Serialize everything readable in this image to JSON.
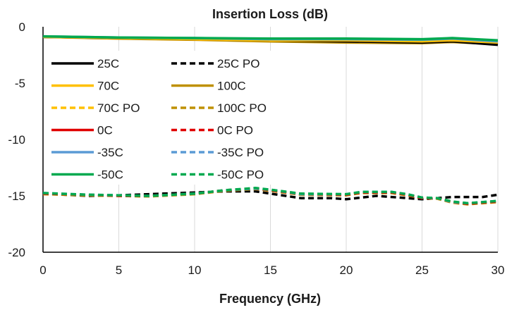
{
  "chart_data": {
    "type": "line",
    "title": "Insertion Loss (dB)",
    "xlabel": "Frequency  (GHz)",
    "ylabel": "",
    "xlim": [
      0,
      30
    ],
    "ylim": [
      -20,
      0
    ],
    "x_ticks": [
      "0",
      "5",
      "10",
      "15",
      "20",
      "25",
      "30"
    ],
    "y_ticks": [
      "0",
      "-5",
      "-10",
      "-15",
      "-20"
    ],
    "grid": "vertical",
    "legend_position": "top-left",
    "series": [
      {
        "name": "25C",
        "color": "#000000",
        "dash": "solid",
        "x": [
          0,
          5,
          10,
          15,
          20,
          25,
          27,
          30
        ],
        "y": [
          -0.9,
          -1.0,
          -1.1,
          -1.2,
          -1.3,
          -1.4,
          -1.3,
          -1.6
        ]
      },
      {
        "name": "25C PO",
        "color": "#000000",
        "dash": "dashed",
        "x": [
          0,
          3,
          5,
          8,
          10,
          12,
          14,
          15,
          17,
          19,
          20,
          22,
          24,
          25,
          27,
          29,
          30
        ],
        "y": [
          -14.8,
          -15.0,
          -14.95,
          -14.8,
          -14.7,
          -14.6,
          -14.6,
          -14.8,
          -15.2,
          -15.2,
          -15.3,
          -15.0,
          -15.2,
          -15.3,
          -15.1,
          -15.1,
          -14.9
        ]
      },
      {
        "name": "70C",
        "color": "#FFC000",
        "dash": "solid",
        "x": [
          0,
          5,
          10,
          15,
          20,
          25,
          27,
          30
        ],
        "y": [
          -0.9,
          -1.0,
          -1.1,
          -1.2,
          -1.2,
          -1.3,
          -1.2,
          -1.4
        ]
      },
      {
        "name": "100C",
        "color": "#BF9000",
        "dash": "solid",
        "x": [
          0,
          5,
          10,
          15,
          20,
          25,
          27,
          30
        ],
        "y": [
          -0.9,
          -1.05,
          -1.15,
          -1.3,
          -1.4,
          -1.45,
          -1.35,
          -1.55
        ]
      },
      {
        "name": "70C PO",
        "color": "#FFC000",
        "dash": "dashed",
        "x": [
          0,
          3,
          5,
          7,
          10,
          12,
          14,
          15,
          17,
          20,
          21,
          23,
          24,
          25,
          26,
          27,
          28,
          30
        ],
        "y": [
          -14.8,
          -14.95,
          -15.0,
          -15.05,
          -14.8,
          -14.5,
          -14.35,
          -14.5,
          -14.9,
          -14.9,
          -14.7,
          -14.7,
          -14.9,
          -15.2,
          -15.2,
          -15.6,
          -15.7,
          -15.5
        ]
      },
      {
        "name": "100C PO",
        "color": "#BF9000",
        "dash": "dashed",
        "x": [
          0,
          3,
          5,
          7,
          10,
          12,
          14,
          15,
          17,
          20,
          21,
          23,
          24,
          25,
          26,
          27,
          28,
          30
        ],
        "y": [
          -14.85,
          -14.95,
          -15.0,
          -15.05,
          -14.85,
          -14.55,
          -14.4,
          -14.55,
          -14.9,
          -14.95,
          -14.75,
          -14.75,
          -14.95,
          -15.2,
          -15.25,
          -15.6,
          -15.75,
          -15.55
        ]
      },
      {
        "name": "0C",
        "color": "#E00000",
        "dash": "solid",
        "x": [
          0,
          5,
          10,
          15,
          20,
          25,
          27,
          30
        ],
        "y": [
          -0.9,
          -1.0,
          -1.05,
          -1.15,
          -1.2,
          -1.25,
          -1.15,
          -1.4
        ]
      },
      {
        "name": "0C PO",
        "color": "#E00000",
        "dash": "dashed",
        "x": [
          0,
          3,
          5,
          7,
          10,
          12,
          14,
          15,
          17,
          20,
          21,
          23,
          24,
          25,
          26,
          27,
          28,
          30
        ],
        "y": [
          -14.8,
          -14.9,
          -15.0,
          -15.0,
          -14.8,
          -14.5,
          -14.35,
          -14.5,
          -14.85,
          -14.9,
          -14.7,
          -14.7,
          -14.9,
          -15.2,
          -15.2,
          -15.55,
          -15.7,
          -15.5
        ]
      },
      {
        "name": "-35C",
        "color": "#5B9BD5",
        "dash": "solid",
        "x": [
          0,
          5,
          10,
          15,
          20,
          25,
          27,
          30
        ],
        "y": [
          -0.85,
          -0.95,
          -1.0,
          -1.1,
          -1.1,
          -1.15,
          -1.05,
          -1.3
        ]
      },
      {
        "name": "-35C PO",
        "color": "#5B9BD5",
        "dash": "dashed",
        "x": [
          0,
          3,
          5,
          7,
          10,
          12,
          14,
          15,
          17,
          20,
          21,
          23,
          24,
          25,
          26,
          27,
          28,
          30
        ],
        "y": [
          -14.75,
          -14.9,
          -14.95,
          -15.0,
          -14.8,
          -14.5,
          -14.35,
          -14.45,
          -14.85,
          -14.85,
          -14.65,
          -14.65,
          -14.85,
          -15.15,
          -15.2,
          -15.55,
          -15.65,
          -15.45
        ]
      },
      {
        "name": "-50C",
        "color": "#00A94F",
        "dash": "solid",
        "x": [
          0,
          5,
          10,
          15,
          20,
          25,
          27,
          30
        ],
        "y": [
          -0.85,
          -0.95,
          -1.0,
          -1.05,
          -1.05,
          -1.1,
          -1.0,
          -1.2
        ]
      },
      {
        "name": "-50C PO",
        "color": "#00A94F",
        "dash": "dashed",
        "x": [
          0,
          3,
          5,
          7,
          10,
          12,
          14,
          15,
          17,
          20,
          21,
          23,
          24,
          25,
          26,
          27,
          28,
          30
        ],
        "y": [
          -14.75,
          -14.9,
          -14.95,
          -15.0,
          -14.8,
          -14.5,
          -14.3,
          -14.45,
          -14.8,
          -14.85,
          -14.65,
          -14.65,
          -14.85,
          -15.15,
          -15.2,
          -15.5,
          -15.65,
          -15.45
        ]
      }
    ]
  }
}
